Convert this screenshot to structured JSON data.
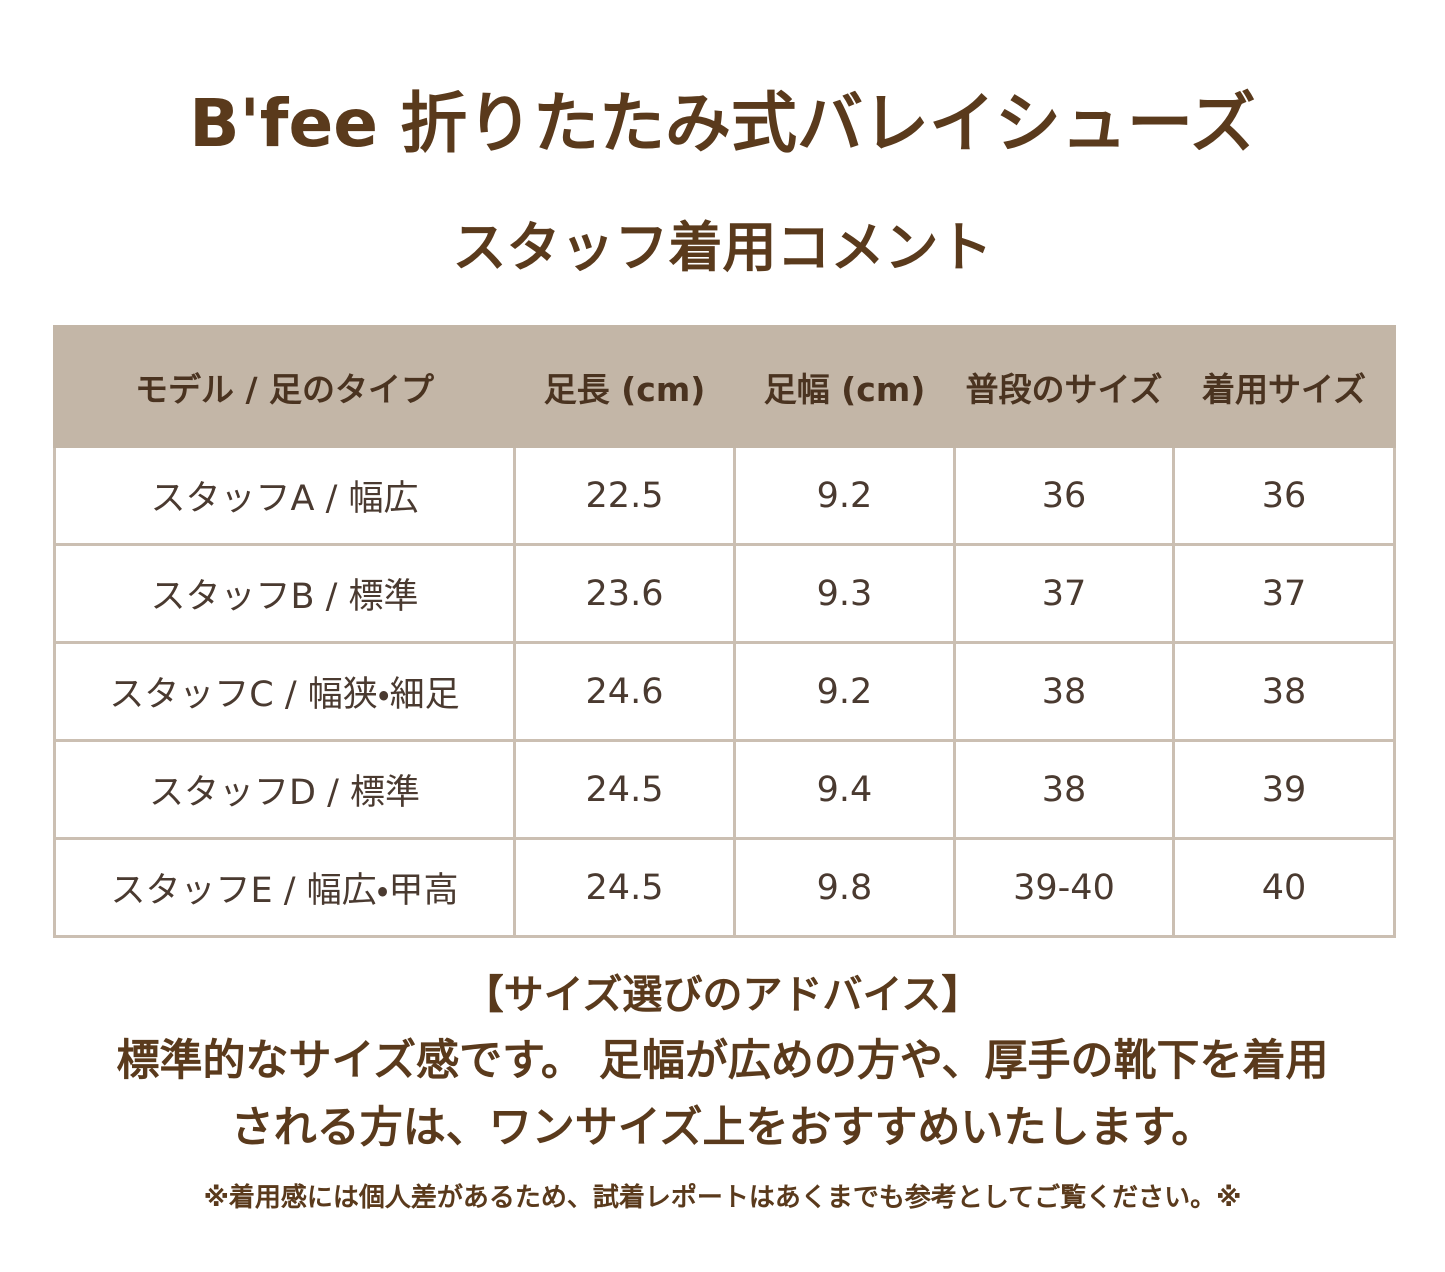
{
  "header": {
    "title": "B'fee 折りたたみ式バレイシューズ",
    "subtitle": "スタッフ着用コメント"
  },
  "table": {
    "columns": [
      "モデル / 足のタイプ",
      "足長 (cm)",
      "足幅 (cm)",
      "普段のサイズ",
      "着用サイズ"
    ],
    "rows": [
      [
        "スタッフA / 幅広",
        "22.5",
        "9.2",
        "36",
        "36"
      ],
      [
        "スタッフB / 標準",
        "23.6",
        "9.3",
        "37",
        "37"
      ],
      [
        "スタッフC / 幅狭・細足",
        "24.6",
        "9.2",
        "38",
        "38"
      ],
      [
        "スタッフD / 標準",
        "24.5",
        "9.4",
        "38",
        "39"
      ],
      [
        "スタッフE / 幅広・甲高",
        "24.5",
        "9.8",
        "39-40",
        "40"
      ]
    ]
  },
  "advice": {
    "heading": "【サイズ選びのアドバイス】",
    "lines": [
      "標準的なサイズ感です。 足幅が広めの方や、厚手の靴下を着用",
      "される方は、ワンサイズ上をおすすめいたします。"
    ]
  },
  "note": "※着用感には個人差があるため、試着レポートはあくまでも参考としてご覧ください。※"
}
